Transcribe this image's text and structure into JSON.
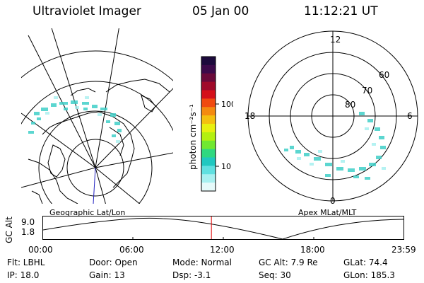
{
  "header": {
    "title": "Ultraviolet Imager",
    "date": "05 Jan 00",
    "time": "11:12:21 UT"
  },
  "left_map": {
    "label": "Geographic Lat/Lon"
  },
  "right_map": {
    "label": "Apex MLat/MLT",
    "mlt_labels": {
      "top": "12",
      "bottom": "0",
      "left": "18",
      "right": "6"
    },
    "lat_labels": [
      "60",
      "70",
      "80"
    ]
  },
  "colorbar": {
    "unit": "photon cm⁻²s⁻¹",
    "ticks": [
      "100",
      "10"
    ],
    "colors": [
      "#1c0a3c",
      "#3c0a4a",
      "#6a0a3a",
      "#a00a2a",
      "#d4101a",
      "#f04a10",
      "#f48a10",
      "#f4c010",
      "#e8f010",
      "#b4f010",
      "#70e830",
      "#30d880",
      "#20c8c0",
      "#60e0e0",
      "#a8f0f0",
      "#e6fafa"
    ]
  },
  "timeline": {
    "axis_label": "GC Alt",
    "y_top": "9.0",
    "y_bottom": "1.8",
    "ticks": [
      "00:00",
      "06:00",
      "12:00",
      "18:00",
      "23:59"
    ],
    "current_time_fraction": 0.467
  },
  "footer": {
    "flt": "Flt: LBHL",
    "door": "Door: Open",
    "mode": "Mode: Normal",
    "gc_alt": "GC Alt: 7.9 Re",
    "glat": "GLat:  74.4",
    "ip": "IP: 18.0",
    "gain": "Gain: 13",
    "dsp": "Dsp:   -3.1",
    "seq": "Seq: 30",
    "glon": "GLon: 185.3"
  },
  "accent": {
    "aurora": "#40d0c8",
    "marker": "#e00000",
    "meridian": "#2020c0"
  }
}
